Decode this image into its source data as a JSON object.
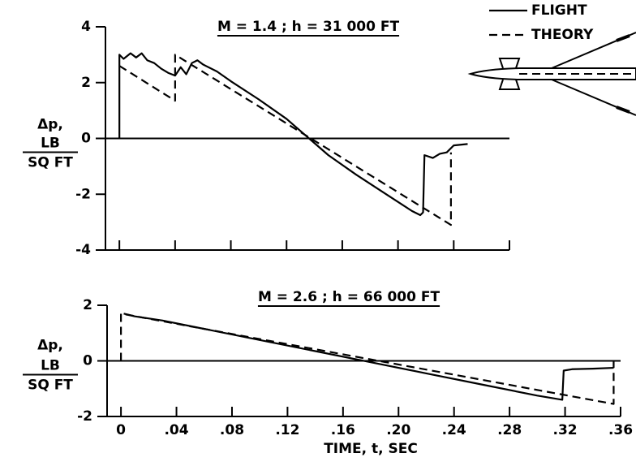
{
  "chart_data": [
    {
      "type": "line",
      "title": "M = 1.4 ; h = 31 000 FT",
      "ylabel": [
        "Δp,",
        "LB",
        "SQ FT"
      ],
      "xlim": [
        -0.01,
        0.28
      ],
      "ylim": [
        -4,
        4
      ],
      "xticks": [
        0,
        0.04,
        0.08,
        0.12,
        0.16,
        0.2,
        0.24,
        0.28
      ],
      "xtick_labels": false,
      "yticks": [
        4,
        2,
        0,
        -2,
        -4
      ],
      "zero_line": true,
      "legend": "upper right",
      "series": [
        {
          "name": "FLIGHT",
          "color": "#000000",
          "style": "solid",
          "x": [
            0,
            0,
            0.003,
            0.008,
            0.012,
            0.016,
            0.02,
            0.025,
            0.03,
            0.035,
            0.04,
            0.044,
            0.048,
            0.052,
            0.056,
            0.06,
            0.07,
            0.08,
            0.1,
            0.12,
            0.135,
            0.15,
            0.17,
            0.19,
            0.21,
            0.216,
            0.218,
            0.219,
            0.225,
            0.23,
            0.235,
            0.24,
            0.25
          ],
          "values": [
            0,
            3.0,
            2.85,
            3.05,
            2.9,
            3.05,
            2.8,
            2.7,
            2.5,
            2.35,
            2.25,
            2.55,
            2.3,
            2.7,
            2.8,
            2.65,
            2.4,
            2.05,
            1.4,
            0.7,
            0.05,
            -0.6,
            -1.3,
            -1.95,
            -2.6,
            -2.75,
            -2.65,
            -0.6,
            -0.7,
            -0.55,
            -0.5,
            -0.25,
            -0.2
          ]
        },
        {
          "name": "THEORY",
          "color": "#000000",
          "style": "dashed",
          "x": [
            0,
            0.04,
            0.04,
            0.238,
            0.238
          ],
          "values": [
            2.6,
            1.35,
            3.0,
            -3.1,
            -0.5
          ]
        }
      ]
    },
    {
      "type": "line",
      "title": "M = 2.6 ; h = 66 000 FT",
      "ylabel": [
        "Δp,",
        "LB",
        "SQ FT"
      ],
      "xlabel": "TIME, t, SEC",
      "xlim": [
        -0.01,
        0.36
      ],
      "ylim": [
        -2,
        2
      ],
      "xticks": [
        0,
        {
          "value": 0.04,
          "label": ".04"
        },
        {
          "value": 0.08,
          "label": ".08"
        },
        {
          "value": 0.12,
          "label": ".12"
        },
        {
          "value": 0.16,
          "label": ".16"
        },
        {
          "value": 0.2,
          "label": ".20"
        },
        {
          "value": 0.24,
          "label": ".24"
        },
        {
          "value": 0.28,
          "label": ".28"
        },
        {
          "value": 0.32,
          "label": ".32"
        },
        {
          "value": 0.36,
          "label": ".36"
        }
      ],
      "yticks": [
        2,
        0,
        -2
      ],
      "zero_line": true,
      "series": [
        {
          "name": "FLIGHT",
          "color": "#000000",
          "style": "solid",
          "x": [
            0.002,
            0.006,
            0.01,
            0.03,
            0.06,
            0.1,
            0.14,
            0.18,
            0.22,
            0.26,
            0.3,
            0.318,
            0.319,
            0.325,
            0.34,
            0.355
          ],
          "values": [
            1.7,
            1.65,
            1.6,
            1.45,
            1.15,
            0.75,
            0.35,
            -0.05,
            -0.45,
            -0.85,
            -1.25,
            -1.4,
            -0.35,
            -0.3,
            -0.28,
            -0.25
          ]
        },
        {
          "name": "THEORY",
          "color": "#000000",
          "style": "dashed",
          "x": [
            0,
            0,
            0.355,
            0.355
          ],
          "values": [
            0,
            1.7,
            -1.55,
            0
          ]
        }
      ]
    }
  ]
}
